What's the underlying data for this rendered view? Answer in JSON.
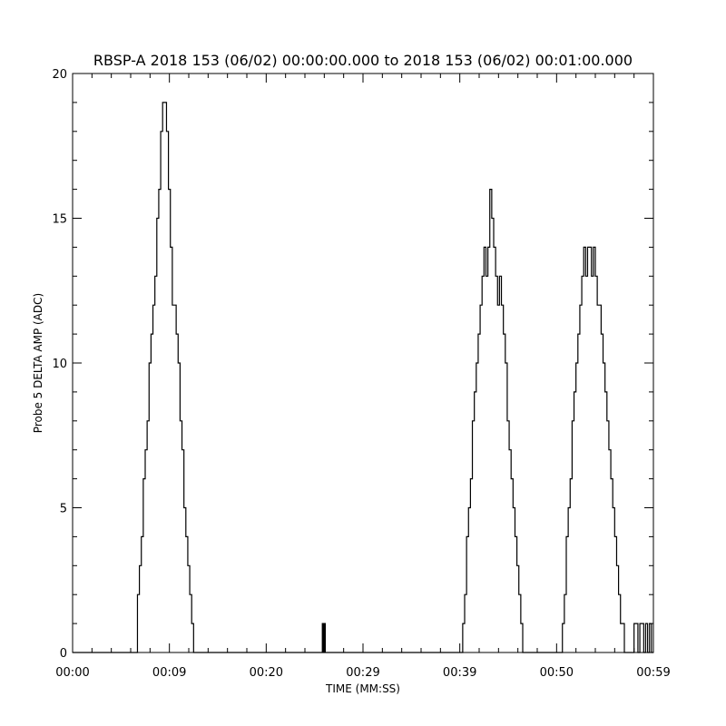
{
  "chart_data": {
    "type": "line",
    "title": "RBSP-A 2018 153 (06/02) 00:00:00.000 to 2018 153 (06/02) 00:01:00.000",
    "xlabel": "TIME (MM:SS)",
    "ylabel": "Probe 5 DELTA AMP (ADC)",
    "xlim": [
      0,
      60
    ],
    "ylim": [
      0,
      20
    ],
    "x_ticks": [
      {
        "value": 0,
        "label": "00:00"
      },
      {
        "value": 10,
        "label": "00:09"
      },
      {
        "value": 20,
        "label": "00:20"
      },
      {
        "value": 30,
        "label": "00:29"
      },
      {
        "value": 40,
        "label": "00:39"
      },
      {
        "value": 50,
        "label": "00:50"
      },
      {
        "value": 60,
        "label": "00:59"
      }
    ],
    "y_ticks": [
      {
        "value": 0,
        "label": "0"
      },
      {
        "value": 5,
        "label": "5"
      },
      {
        "value": 10,
        "label": "10"
      },
      {
        "value": 15,
        "label": "15"
      },
      {
        "value": 20,
        "label": "20"
      }
    ],
    "grid": false,
    "step": true,
    "series": [
      {
        "color": "#000000",
        "x": [
          0,
          6.5,
          6.7,
          6.9,
          7.1,
          7.3,
          7.5,
          7.7,
          7.9,
          8.1,
          8.3,
          8.5,
          8.7,
          8.9,
          9.1,
          9.3,
          9.5,
          9.7,
          9.9,
          10.1,
          10.3,
          10.5,
          10.7,
          10.9,
          11.1,
          11.3,
          11.5,
          11.7,
          11.9,
          12.1,
          12.3,
          12.5,
          12.7,
          13.0,
          25.8,
          25.9,
          26.0,
          26.1,
          26.2,
          40.1,
          40.3,
          40.5,
          40.7,
          40.9,
          41.1,
          41.3,
          41.5,
          41.7,
          41.9,
          42.1,
          42.3,
          42.5,
          42.7,
          42.9,
          43.1,
          43.3,
          43.5,
          43.7,
          43.9,
          44.1,
          44.3,
          44.5,
          44.7,
          44.9,
          45.1,
          45.3,
          45.5,
          45.7,
          45.9,
          46.1,
          46.3,
          46.5,
          46.7,
          46.9,
          47.1,
          47.3,
          47.5,
          47.7,
          47.9,
          50.4,
          50.6,
          50.8,
          51.0,
          51.2,
          51.4,
          51.6,
          51.8,
          52.0,
          52.2,
          52.4,
          52.6,
          52.8,
          53.0,
          53.2,
          53.4,
          53.6,
          53.8,
          54.0,
          54.2,
          54.4,
          54.6,
          54.8,
          55.0,
          55.2,
          55.4,
          55.6,
          55.8,
          56.0,
          56.2,
          56.4,
          56.6,
          56.8,
          57.0,
          57.2,
          57.4,
          58.0,
          58.2,
          58.4,
          58.6,
          58.8,
          59.0,
          59.2,
          59.4,
          59.6,
          59.8,
          60
        ],
        "y": [
          0,
          0,
          2,
          3,
          4,
          6,
          7,
          8,
          10,
          11,
          12,
          13,
          15,
          16,
          18,
          19,
          19,
          18,
          16,
          14,
          12,
          12,
          11,
          10,
          8,
          7,
          5,
          4,
          3,
          2,
          1,
          0,
          0,
          0,
          1,
          0,
          1,
          0,
          0,
          0,
          1,
          2,
          4,
          5,
          6,
          8,
          9,
          10,
          11,
          12,
          13,
          14,
          13,
          14,
          16,
          15,
          14,
          13,
          12,
          13,
          12,
          11,
          10,
          8,
          7,
          6,
          5,
          4,
          3,
          2,
          1,
          0,
          0,
          0,
          0,
          0,
          0,
          0,
          0,
          0,
          1,
          2,
          4,
          5,
          6,
          8,
          9,
          10,
          11,
          12,
          13,
          14,
          13,
          14,
          14,
          13,
          14,
          13,
          12,
          12,
          11,
          10,
          9,
          8,
          7,
          6,
          5,
          4,
          3,
          2,
          1,
          1,
          0,
          0,
          0,
          1,
          1,
          0,
          1,
          1,
          0,
          1,
          0,
          1,
          0,
          0
        ]
      }
    ]
  }
}
